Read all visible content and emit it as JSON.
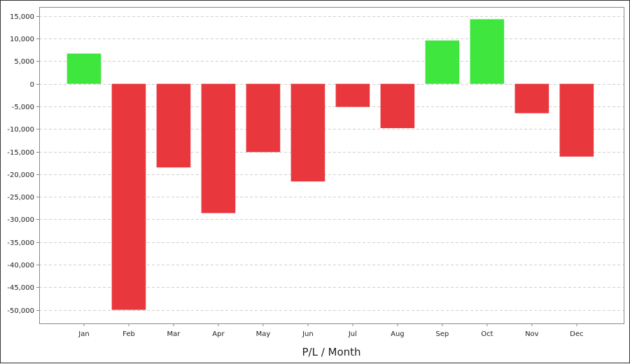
{
  "chart_data": {
    "type": "bar",
    "categories": [
      "Jan",
      "Feb",
      "Mar",
      "Apr",
      "May",
      "Jun",
      "Jul",
      "Aug",
      "Sep",
      "Oct",
      "Nov",
      "Dec"
    ],
    "values": [
      6700,
      -50000,
      -18500,
      -28600,
      -15100,
      -21600,
      -5100,
      -9800,
      9600,
      14300,
      -6500,
      -16100
    ],
    "title": "",
    "xlabel": "P/L / Month",
    "ylabel": "",
    "ylim": [
      -53000,
      17000
    ],
    "yticks": [
      15000,
      10000,
      5000,
      0,
      -5000,
      -10000,
      -15000,
      -20000,
      -25000,
      -30000,
      -35000,
      -40000,
      -45000,
      -50000
    ],
    "ytick_labels": [
      "15,000",
      "10,000",
      "5,000",
      "0",
      "-5,000",
      "-10,000",
      "-15,000",
      "-20,000",
      "-25,000",
      "-30,000",
      "-35,000",
      "-40,000",
      "-45,000",
      "-50,000"
    ],
    "grid": true,
    "colors": {
      "positive": "#3ee63e",
      "negative": "#e8383d",
      "grid": "#cfcfcf",
      "axis": "#888888"
    }
  }
}
